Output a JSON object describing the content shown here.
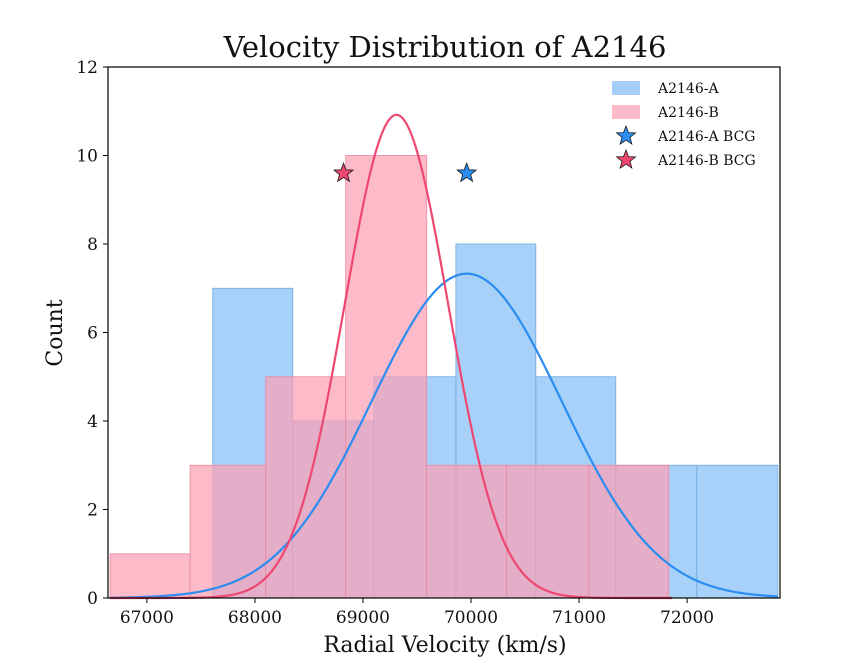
{
  "chart_data": {
    "type": "histogram",
    "title": "Velocity Distribution of A2146",
    "xlabel": "Radial Velocity (km/s)",
    "ylabel": "Count",
    "xlim": [
      66640,
      72860
    ],
    "ylim": [
      0,
      12
    ],
    "xticks": [
      67000,
      68000,
      69000,
      70000,
      71000,
      72000
    ],
    "yticks": [
      0,
      2,
      4,
      6,
      8,
      10,
      12
    ],
    "grid": false,
    "legend_position": "top-right",
    "series": [
      {
        "name": "A2146-A",
        "color": "#82bdf7",
        "edge_color": "#6fa8dd",
        "bins": [
          {
            "x0": 67610,
            "x1": 68350,
            "count": 7
          },
          {
            "x0": 68350,
            "x1": 69100,
            "count": 4
          },
          {
            "x0": 69100,
            "x1": 69860,
            "count": 5
          },
          {
            "x0": 69860,
            "x1": 70600,
            "count": 8
          },
          {
            "x0": 70600,
            "x1": 71340,
            "count": 5
          },
          {
            "x0": 71340,
            "x1": 72090,
            "count": 3
          },
          {
            "x0": 72090,
            "x1": 72840,
            "count": 3
          }
        ],
        "fit": {
          "type": "gaussian",
          "mean": 69960,
          "sigma": 880,
          "peak": 7.33,
          "x_range": [
            66660,
            72840
          ],
          "color": "#2b8df0"
        }
      },
      {
        "name": "A2146-B",
        "color": "#fc9fb4",
        "edge_color": "#e98aa0",
        "bins": [
          {
            "x0": 66660,
            "x1": 67400,
            "count": 1
          },
          {
            "x0": 67400,
            "x1": 68100,
            "count": 3
          },
          {
            "x0": 68100,
            "x1": 68840,
            "count": 5
          },
          {
            "x0": 68840,
            "x1": 69590,
            "count": 10
          },
          {
            "x0": 69590,
            "x1": 70330,
            "count": 3
          },
          {
            "x0": 70330,
            "x1": 71090,
            "count": 3
          },
          {
            "x0": 71090,
            "x1": 71830,
            "count": 3
          }
        ],
        "fit": {
          "type": "gaussian",
          "mean": 69310,
          "sigma": 480,
          "peak": 10.92,
          "x_range": [
            66660,
            71860
          ],
          "color": "#ee4771"
        }
      }
    ],
    "markers": [
      {
        "name": "A2146-A BCG",
        "x": 69960,
        "y": 9.6,
        "shape": "star",
        "color": "#2b8df0"
      },
      {
        "name": "A2146-B BCG",
        "x": 68820,
        "y": 9.6,
        "shape": "star",
        "color": "#ee4771"
      }
    ],
    "legend": [
      {
        "label": "A2146-A",
        "kind": "patch",
        "color": "#82bdf7"
      },
      {
        "label": "A2146-B",
        "kind": "patch",
        "color": "#fc9fb4"
      },
      {
        "label": "A2146-A BCG",
        "kind": "star",
        "color": "#2b8df0"
      },
      {
        "label": "A2146-B BCG",
        "kind": "star",
        "color": "#ee4771"
      }
    ]
  }
}
